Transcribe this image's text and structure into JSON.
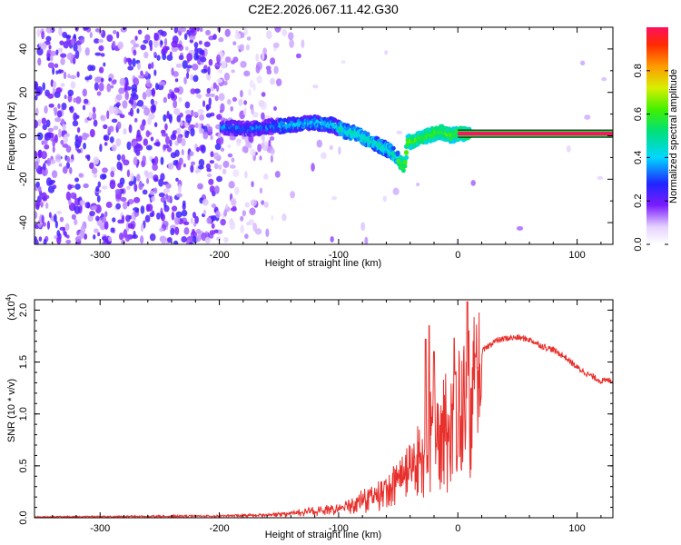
{
  "title": "C2E2.2026.067.11.42.G30",
  "chart_data": [
    {
      "type": "heatmap",
      "name": "spectrogram",
      "xlabel": "Height of straight line (km)",
      "ylabel": "Frequency (Hz)",
      "xlim": [
        -355,
        130
      ],
      "ylim": [
        -50,
        50
      ],
      "x_ticks": [
        -300,
        -200,
        -100,
        0,
        100
      ],
      "y_ticks": [
        -40,
        -20,
        0,
        20,
        40
      ],
      "x_tick_labels": [
        "-300",
        "-200",
        "-100",
        "0",
        "100"
      ],
      "y_tick_labels": [
        "-40",
        "-20",
        "0",
        "20",
        "40"
      ],
      "colorbar": {
        "label": "Normalized spectral amplitude",
        "range": [
          0,
          1
        ],
        "ticks": [
          0.0,
          0.2,
          0.4,
          0.6,
          0.8
        ],
        "tick_labels": [
          "0.0",
          "0.2",
          "0.4",
          "0.6",
          "0.8"
        ]
      },
      "ridge": {
        "description_points": [
          [
            -195,
            4
          ],
          [
            -180,
            3
          ],
          [
            -160,
            4
          ],
          [
            -140,
            5
          ],
          [
            -120,
            6
          ],
          [
            -105,
            5
          ],
          [
            -95,
            2
          ],
          [
            -85,
            1
          ],
          [
            -75,
            -2
          ],
          [
            -68,
            -4
          ],
          [
            -60,
            -6
          ],
          [
            -55,
            -8
          ],
          [
            -48,
            -12
          ],
          [
            -45,
            -15
          ],
          [
            -42,
            -3
          ],
          [
            -35,
            -2
          ],
          [
            -30,
            -1
          ],
          [
            -25,
            0
          ],
          [
            -20,
            1
          ],
          [
            -15,
            2
          ],
          [
            -10,
            1
          ],
          [
            -5,
            0
          ],
          [
            0,
            1
          ],
          [
            10,
            1
          ],
          [
            130,
            1
          ]
        ],
        "stable_band": {
          "x_start": 0,
          "x_end": 130,
          "freq": 1,
          "amplitude": 1.0
        }
      }
    },
    {
      "type": "line",
      "name": "snr",
      "xlabel": "Height of straight line (km)",
      "ylabel": "SNR (10 * v/v)",
      "exponent_label": "(x10",
      "exponent_power": "4",
      "exponent_close": ")",
      "xlim": [
        -355,
        130
      ],
      "ylim": [
        0,
        2.1
      ],
      "x_ticks": [
        -300,
        -200,
        -100,
        0,
        100
      ],
      "y_ticks": [
        0.0,
        0.5,
        1.0,
        1.5,
        2.0
      ],
      "x_tick_labels": [
        "-300",
        "-200",
        "-100",
        "0",
        "100"
      ],
      "y_tick_labels": [
        "0.0",
        "0.5",
        "1.0",
        "1.5",
        "2.0"
      ],
      "color": "#e8302c",
      "envelope": {
        "x": [
          -355,
          -200,
          -160,
          -140,
          -120,
          -100,
          -80,
          -60,
          -50,
          -40,
          -30,
          -20,
          -10,
          0,
          10,
          20,
          30,
          40,
          50,
          60,
          70,
          80,
          90,
          100,
          110,
          120,
          130
        ],
        "y": [
          0.01,
          0.02,
          0.03,
          0.05,
          0.08,
          0.1,
          0.2,
          0.3,
          0.45,
          0.55,
          0.75,
          1.0,
          1.1,
          1.2,
          1.45,
          1.6,
          1.7,
          1.73,
          1.74,
          1.72,
          1.66,
          1.62,
          1.55,
          1.45,
          1.38,
          1.32,
          1.33
        ]
      },
      "spikes": [
        {
          "x": -27,
          "y": 1.72
        },
        {
          "x": -24,
          "y": 1.85
        },
        {
          "x": -20,
          "y": 1.6
        },
        {
          "x": -3,
          "y": 1.73
        },
        {
          "x": 8,
          "y": 2.08
        },
        {
          "x": 15,
          "y": 1.55
        }
      ]
    }
  ]
}
